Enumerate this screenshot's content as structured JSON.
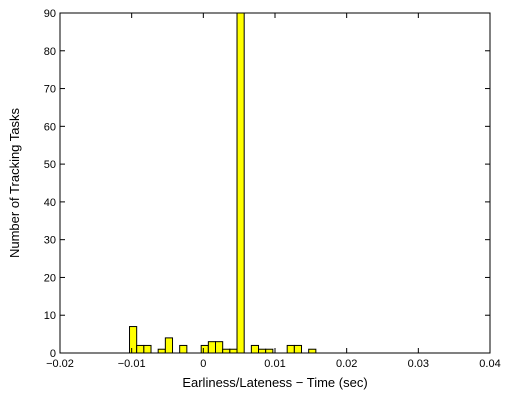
{
  "chart_data": {
    "type": "histogram",
    "xlabel": "Earliness/Lateness − Time (sec)",
    "ylabel": "Number of Tracking Tasks",
    "bins": [
      -0.0103,
      -0.0093,
      -0.0083,
      -0.0073,
      -0.0063,
      -0.0053,
      -0.0043,
      -0.0033,
      -0.0023,
      -0.0013,
      -0.0003,
      0.0007,
      0.0017,
      0.0027,
      0.0037,
      0.0047,
      0.0057,
      0.0067,
      0.0077,
      0.0087,
      0.0097,
      0.0107,
      0.0117,
      0.0127,
      0.0137,
      0.0147,
      0.0157
    ],
    "values": [
      7,
      2,
      2,
      0,
      1,
      4,
      0,
      2,
      0,
      0,
      2,
      3,
      3,
      1,
      1,
      90,
      0,
      2,
      1,
      1,
      0,
      0,
      2,
      2,
      0,
      1
    ],
    "color": "#ffff00",
    "xlim": [
      -0.02,
      0.04
    ],
    "xticks": [
      {
        "value": -0.02,
        "label": "−0.02"
      },
      {
        "value": -0.01,
        "label": "−0.01"
      },
      0,
      0.01,
      0.02,
      0.03,
      0.04
    ],
    "ylim": [
      0,
      90
    ],
    "yticks": [
      0,
      10,
      20,
      30,
      40,
      50,
      60,
      70,
      80,
      90
    ]
  }
}
